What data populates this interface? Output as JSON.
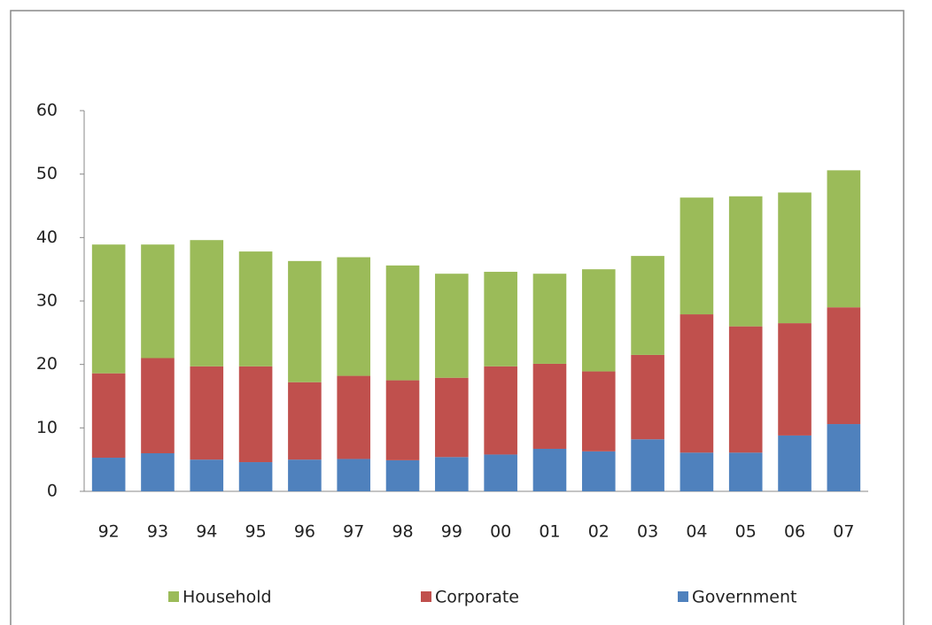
{
  "chart_data": {
    "type": "stacked_bar",
    "categories": [
      "92",
      "93",
      "94",
      "95",
      "96",
      "97",
      "98",
      "99",
      "00",
      "01",
      "02",
      "03",
      "04",
      "05",
      "06",
      "07"
    ],
    "series": [
      {
        "name": "Government",
        "color": "#4f81bd",
        "values": [
          5.3,
          6.0,
          5.0,
          4.6,
          5.0,
          5.1,
          4.9,
          5.4,
          5.8,
          6.7,
          6.3,
          8.2,
          6.1,
          6.1,
          8.8,
          10.6
        ]
      },
      {
        "name": "Corporate",
        "color": "#c0504d",
        "values": [
          13.3,
          15.0,
          14.7,
          15.1,
          12.2,
          13.1,
          12.6,
          12.5,
          13.9,
          13.4,
          12.6,
          13.3,
          21.8,
          19.9,
          17.7,
          18.4
        ]
      },
      {
        "name": "Household",
        "color": "#9bbb59",
        "values": [
          20.3,
          17.9,
          19.9,
          18.1,
          19.1,
          18.7,
          18.1,
          16.4,
          14.9,
          14.2,
          16.1,
          15.6,
          18.4,
          20.5,
          20.6,
          21.6
        ]
      }
    ],
    "ylim": [
      0,
      60
    ],
    "yticks": [
      0,
      10,
      20,
      30,
      40,
      50,
      60
    ],
    "grid": false
  }
}
